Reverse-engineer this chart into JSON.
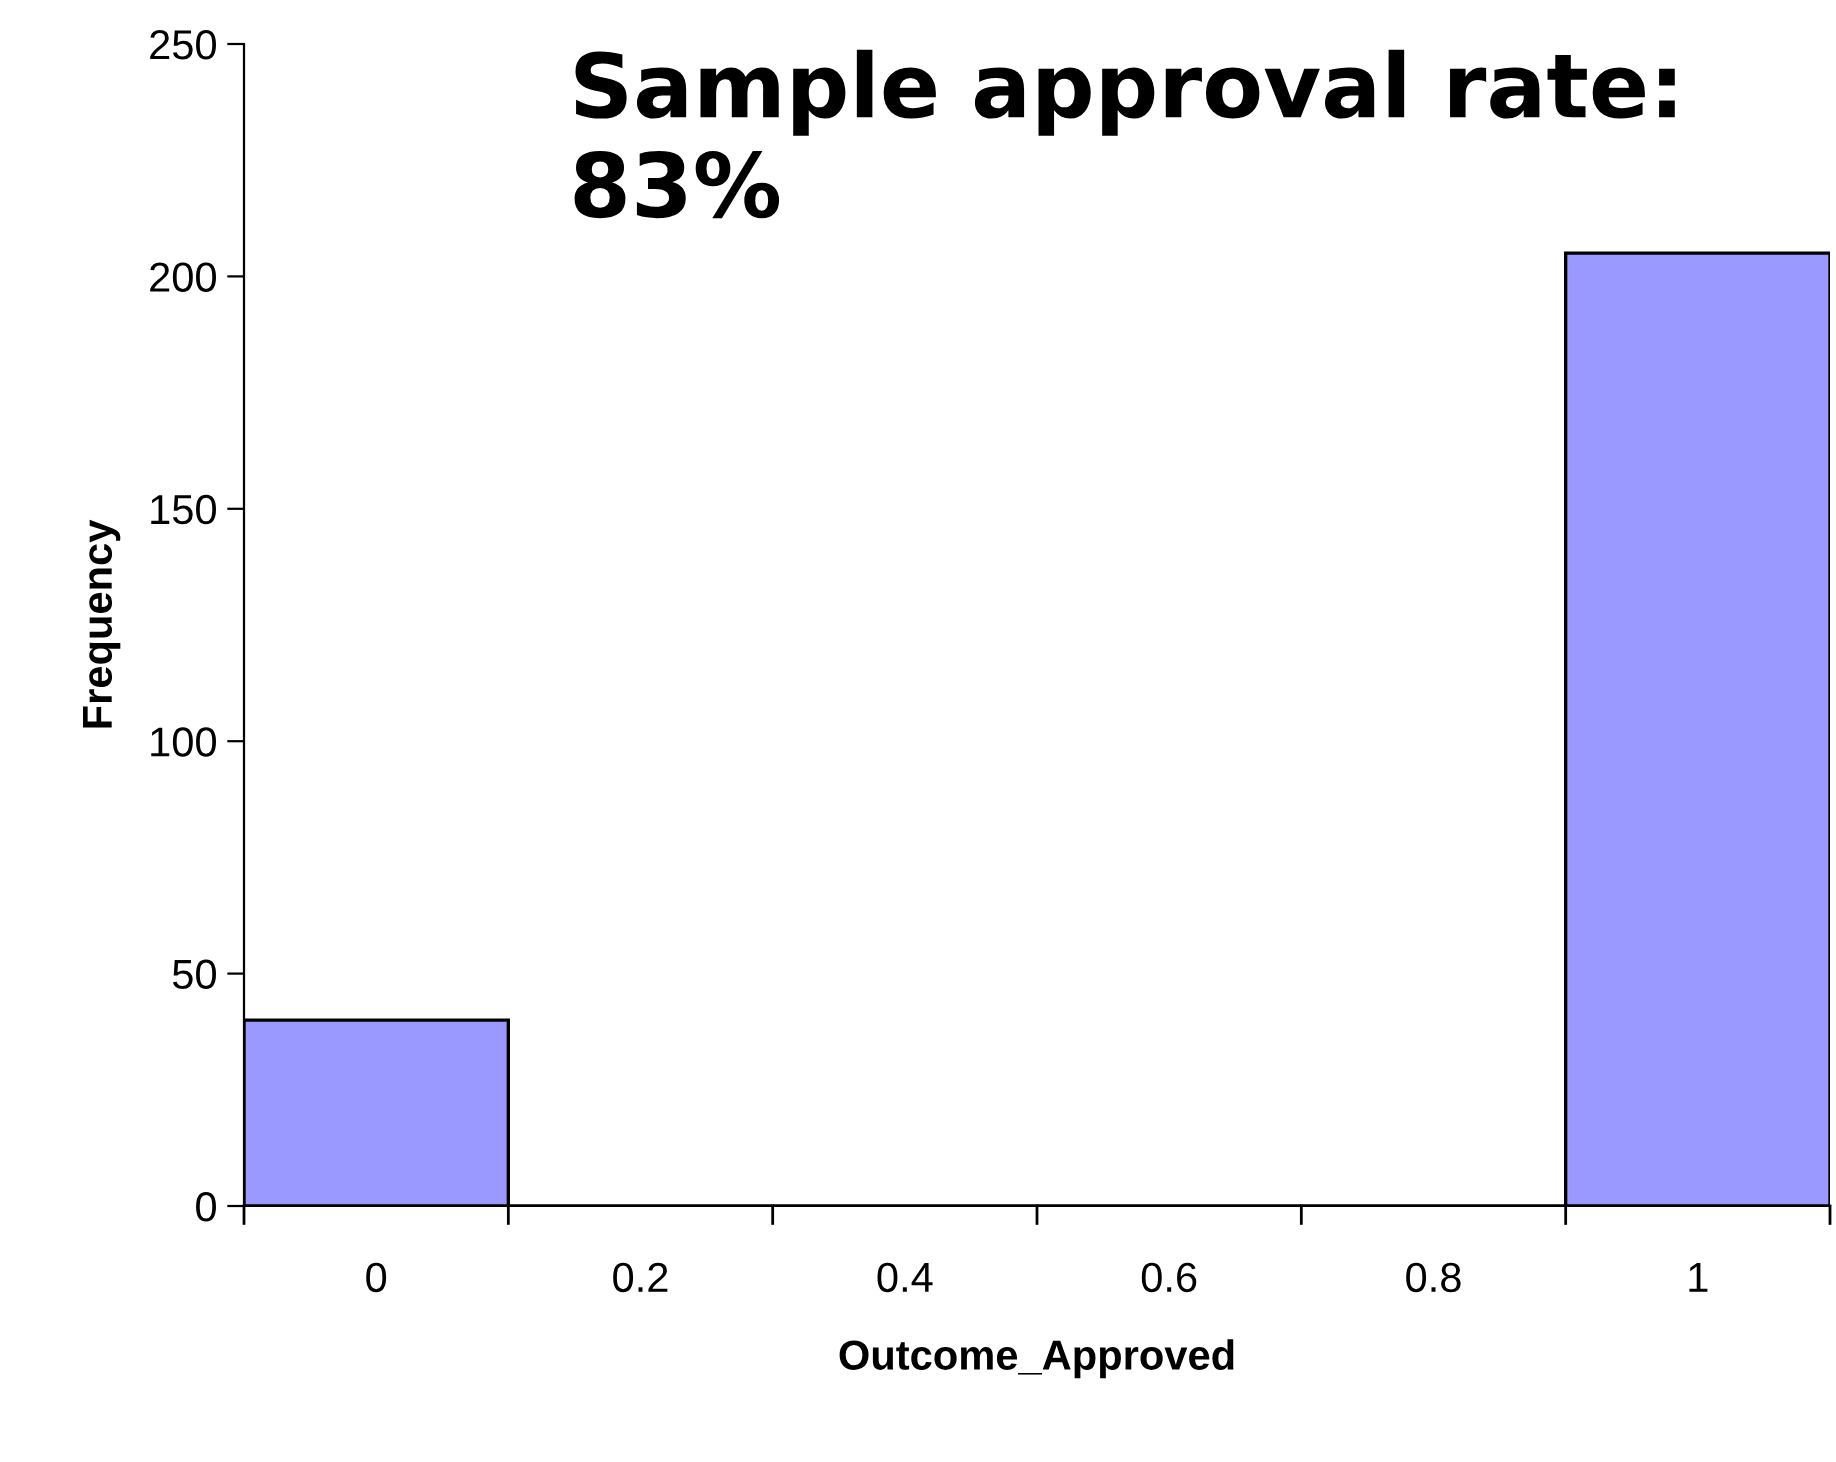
{
  "chart_data": {
    "type": "bar",
    "xlabel": "Outcome_Approved",
    "ylabel": "Frequency",
    "annotations": [
      "Sample approval rate: 83%"
    ],
    "categories": [
      "0",
      "0.2",
      "0.4",
      "0.6",
      "0.8",
      "1"
    ],
    "values": [
      40,
      0,
      0,
      0,
      0,
      205
    ],
    "color": "#9999ff",
    "ylim": [
      0,
      250
    ],
    "yticks": [
      0,
      50,
      100,
      150,
      200,
      250
    ],
    "grid": false,
    "legend": false
  }
}
